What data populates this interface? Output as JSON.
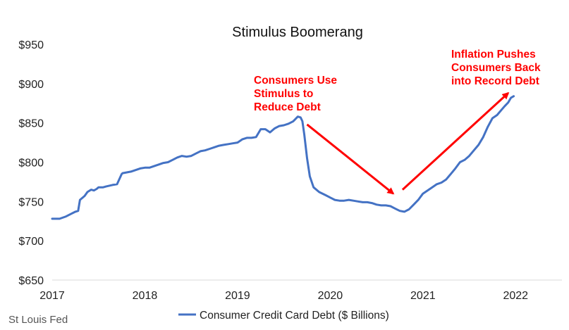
{
  "chart_data": {
    "type": "line",
    "title": "Stimulus Boomerang",
    "xlabel": "",
    "ylabel": "",
    "xlim": [
      2017,
      2022.5
    ],
    "ylim": [
      650,
      950
    ],
    "x_ticks": [
      2017,
      2018,
      2019,
      2020,
      2021,
      2022
    ],
    "x_tick_labels": [
      "2017",
      "2018",
      "2019",
      "2020",
      "2021",
      "2022"
    ],
    "y_ticks": [
      650,
      700,
      750,
      800,
      850,
      900,
      950
    ],
    "y_tick_labels": [
      "$650",
      "$700",
      "$750",
      "$800",
      "$850",
      "$900",
      "$950"
    ],
    "grid": false,
    "legend_position": "bottom",
    "series": [
      {
        "name": "Consumer Credit Card Debt ($ Billions)",
        "color": "#4472c4",
        "x": [
          2017.0,
          2017.08,
          2017.15,
          2017.2,
          2017.25,
          2017.28,
          2017.3,
          2017.35,
          2017.38,
          2017.42,
          2017.45,
          2017.48,
          2017.5,
          2017.55,
          2017.58,
          2017.65,
          2017.7,
          2017.75,
          2017.76,
          2017.85,
          2017.9,
          2017.95,
          2018.0,
          2018.05,
          2018.1,
          2018.15,
          2018.2,
          2018.25,
          2018.3,
          2018.35,
          2018.4,
          2018.45,
          2018.5,
          2018.55,
          2018.6,
          2018.65,
          2018.7,
          2018.75,
          2018.8,
          2018.85,
          2018.9,
          2018.95,
          2019.0,
          2019.05,
          2019.1,
          2019.15,
          2019.2,
          2019.25,
          2019.3,
          2019.35,
          2019.4,
          2019.45,
          2019.5,
          2019.55,
          2019.6,
          2019.65,
          2019.68,
          2019.7,
          2019.72,
          2019.75,
          2019.78,
          2019.82,
          2019.88,
          2019.95,
          2020.0,
          2020.05,
          2020.1,
          2020.15,
          2020.2,
          2020.25,
          2020.3,
          2020.35,
          2020.4,
          2020.45,
          2020.5,
          2020.55,
          2020.6,
          2020.65,
          2020.7,
          2020.75,
          2020.8,
          2020.85,
          2020.9,
          2020.95,
          2021.0,
          2021.05,
          2021.1,
          2021.15,
          2021.2,
          2021.25,
          2021.3,
          2021.35,
          2021.4,
          2021.45,
          2021.5,
          2021.55,
          2021.6,
          2021.65,
          2021.7,
          2021.75,
          2021.8,
          2021.85,
          2021.88,
          2021.92,
          2021.95,
          2021.98
        ],
        "values": [
          728,
          728,
          731,
          734,
          737,
          738,
          752,
          757,
          762,
          765,
          764,
          766,
          768,
          768,
          769,
          771,
          772,
          785,
          786,
          788,
          790,
          792,
          793,
          793,
          795,
          797,
          799,
          800,
          803,
          806,
          808,
          807,
          808,
          811,
          814,
          815,
          817,
          819,
          821,
          822,
          823,
          824,
          825,
          829,
          831,
          831,
          832,
          842,
          842,
          838,
          843,
          846,
          847,
          849,
          852,
          858,
          857,
          852,
          835,
          805,
          782,
          768,
          762,
          758,
          755,
          752,
          751,
          751,
          752,
          751,
          750,
          749,
          749,
          748,
          746,
          745,
          745,
          744,
          741,
          738,
          737,
          740,
          746,
          752,
          760,
          764,
          768,
          772,
          774,
          778,
          785,
          792,
          800,
          803,
          808,
          815,
          822,
          832,
          845,
          856,
          860,
          867,
          871,
          876,
          882,
          884
        ]
      }
    ],
    "annotations": [
      {
        "lines": [
          "Consumers Use",
          "Stimulus to",
          "Reduce Debt"
        ],
        "color": "#ff0000"
      },
      {
        "lines": [
          "Inflation Pushes",
          "Consumers Back",
          "into Record Debt"
        ],
        "color": "#ff0000"
      }
    ],
    "arrows": [
      {
        "from": [
          2019.75,
          848
        ],
        "to": [
          2020.68,
          760
        ],
        "color": "#ff0000"
      },
      {
        "from": [
          2020.78,
          765
        ],
        "to": [
          2021.92,
          888
        ],
        "color": "#ff0000"
      }
    ]
  },
  "source_note": "St Louis Fed"
}
